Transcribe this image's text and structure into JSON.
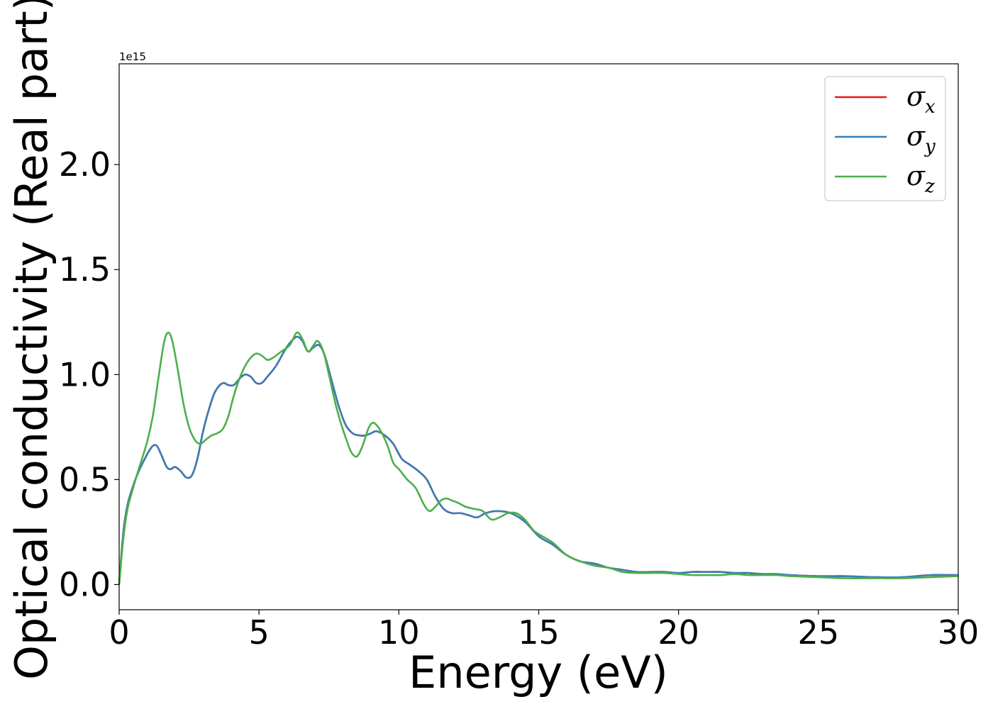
{
  "chart_data": {
    "type": "line",
    "xlabel": "Energy (eV)",
    "ylabel": "Optical conductivity (Real part)",
    "y_offset_label": "1e15",
    "y_multiplier": 1000000000000000.0,
    "xlim": [
      0,
      30
    ],
    "ylim": [
      -0.12,
      2.48
    ],
    "x_ticks": [
      0,
      5,
      10,
      15,
      20,
      25,
      30
    ],
    "x_tick_labels": [
      "0",
      "5",
      "10",
      "15",
      "20",
      "25",
      "30"
    ],
    "y_ticks": [
      0.0,
      0.5,
      1.0,
      1.5,
      2.0
    ],
    "y_tick_labels": [
      "0.0",
      "0.5",
      "1.0",
      "1.5",
      "2.0"
    ],
    "grid": false,
    "legend_position": "top-right",
    "series": [
      {
        "name": "σ_x",
        "legend_symbol": "σ",
        "legend_subscript": "x",
        "color": "#e41a1c",
        "x": [
          0,
          0.15,
          0.3,
          0.5,
          0.7,
          1.0,
          1.2,
          1.35,
          1.5,
          1.7,
          1.85,
          2.0,
          2.2,
          2.4,
          2.6,
          2.8,
          3.0,
          3.2,
          3.4,
          3.6,
          3.75,
          3.9,
          4.1,
          4.3,
          4.5,
          4.7,
          4.9,
          5.1,
          5.3,
          5.6,
          5.9,
          6.1,
          6.35,
          6.55,
          6.75,
          6.95,
          7.15,
          7.35,
          7.6,
          7.85,
          8.1,
          8.35,
          8.6,
          8.8,
          9.0,
          9.2,
          9.5,
          9.8,
          10.1,
          10.4,
          10.7,
          11.0,
          11.3,
          11.6,
          11.9,
          12.2,
          12.5,
          12.8,
          13.1,
          13.5,
          14.0,
          14.5,
          15.0,
          15.5,
          16.0,
          16.5,
          17.0,
          17.5,
          18.0,
          18.5,
          19.0,
          19.5,
          20.0,
          20.5,
          21.0,
          21.5,
          22.0,
          22.5,
          23.0,
          23.5,
          24.0,
          25.0,
          26.0,
          27.0,
          28.0,
          29.0,
          30.0
        ],
        "y": [
          0.0,
          0.25,
          0.38,
          0.47,
          0.54,
          0.62,
          0.66,
          0.66,
          0.62,
          0.56,
          0.55,
          0.56,
          0.54,
          0.51,
          0.52,
          0.6,
          0.73,
          0.83,
          0.91,
          0.95,
          0.96,
          0.95,
          0.95,
          0.98,
          1.0,
          0.99,
          0.96,
          0.96,
          0.99,
          1.04,
          1.11,
          1.15,
          1.18,
          1.16,
          1.11,
          1.13,
          1.14,
          1.09,
          0.97,
          0.85,
          0.76,
          0.72,
          0.71,
          0.71,
          0.72,
          0.73,
          0.71,
          0.67,
          0.6,
          0.57,
          0.54,
          0.5,
          0.42,
          0.36,
          0.34,
          0.34,
          0.33,
          0.32,
          0.34,
          0.35,
          0.34,
          0.3,
          0.23,
          0.19,
          0.14,
          0.11,
          0.1,
          0.08,
          0.07,
          0.06,
          0.06,
          0.06,
          0.055,
          0.06,
          0.06,
          0.06,
          0.055,
          0.055,
          0.05,
          0.05,
          0.045,
          0.04,
          0.04,
          0.035,
          0.035,
          0.045,
          0.045
        ]
      },
      {
        "name": "σ_y",
        "legend_symbol": "σ",
        "legend_subscript": "y",
        "color": "#377eb8",
        "x": [
          0,
          0.15,
          0.3,
          0.5,
          0.7,
          1.0,
          1.2,
          1.35,
          1.5,
          1.7,
          1.85,
          2.0,
          2.2,
          2.4,
          2.6,
          2.8,
          3.0,
          3.2,
          3.4,
          3.6,
          3.75,
          3.9,
          4.1,
          4.3,
          4.5,
          4.7,
          4.9,
          5.1,
          5.3,
          5.6,
          5.9,
          6.1,
          6.35,
          6.55,
          6.75,
          6.95,
          7.15,
          7.35,
          7.6,
          7.85,
          8.1,
          8.35,
          8.6,
          8.8,
          9.0,
          9.2,
          9.5,
          9.8,
          10.1,
          10.4,
          10.7,
          11.0,
          11.3,
          11.6,
          11.9,
          12.2,
          12.5,
          12.8,
          13.1,
          13.5,
          14.0,
          14.5,
          15.0,
          15.5,
          16.0,
          16.5,
          17.0,
          17.5,
          18.0,
          18.5,
          19.0,
          19.5,
          20.0,
          20.5,
          21.0,
          21.5,
          22.0,
          22.5,
          23.0,
          23.5,
          24.0,
          25.0,
          26.0,
          27.0,
          28.0,
          29.0,
          30.0
        ],
        "y": [
          0.0,
          0.25,
          0.38,
          0.47,
          0.54,
          0.62,
          0.66,
          0.66,
          0.62,
          0.56,
          0.55,
          0.56,
          0.54,
          0.51,
          0.52,
          0.6,
          0.73,
          0.83,
          0.91,
          0.95,
          0.96,
          0.95,
          0.95,
          0.98,
          1.0,
          0.99,
          0.96,
          0.96,
          0.99,
          1.04,
          1.11,
          1.15,
          1.18,
          1.16,
          1.11,
          1.13,
          1.14,
          1.09,
          0.97,
          0.85,
          0.76,
          0.72,
          0.71,
          0.71,
          0.72,
          0.73,
          0.71,
          0.67,
          0.6,
          0.57,
          0.54,
          0.5,
          0.42,
          0.36,
          0.34,
          0.34,
          0.33,
          0.32,
          0.34,
          0.35,
          0.34,
          0.3,
          0.23,
          0.19,
          0.14,
          0.11,
          0.1,
          0.08,
          0.07,
          0.06,
          0.06,
          0.06,
          0.055,
          0.06,
          0.06,
          0.06,
          0.055,
          0.055,
          0.05,
          0.05,
          0.045,
          0.04,
          0.04,
          0.035,
          0.035,
          0.045,
          0.045
        ]
      },
      {
        "name": "σ_z",
        "legend_symbol": "σ",
        "legend_subscript": "z",
        "color": "#4daf4a",
        "x": [
          0,
          0.15,
          0.3,
          0.5,
          0.7,
          1.0,
          1.2,
          1.4,
          1.6,
          1.75,
          1.9,
          2.1,
          2.3,
          2.5,
          2.7,
          2.9,
          3.1,
          3.3,
          3.5,
          3.7,
          3.9,
          4.1,
          4.3,
          4.5,
          4.7,
          4.9,
          5.1,
          5.3,
          5.5,
          5.8,
          6.1,
          6.35,
          6.55,
          6.75,
          6.95,
          7.1,
          7.3,
          7.5,
          7.7,
          7.9,
          8.1,
          8.3,
          8.5,
          8.7,
          8.9,
          9.05,
          9.2,
          9.4,
          9.6,
          9.8,
          10.0,
          10.3,
          10.6,
          10.9,
          11.1,
          11.3,
          11.5,
          11.7,
          11.9,
          12.1,
          12.4,
          12.7,
          13.0,
          13.3,
          13.6,
          13.9,
          14.2,
          14.5,
          14.8,
          15.0,
          15.5,
          16.0,
          16.5,
          17.0,
          17.5,
          18.0,
          18.5,
          19.0,
          19.5,
          20.0,
          20.5,
          21.0,
          21.5,
          22.0,
          22.5,
          23.0,
          23.5,
          24.0,
          25.0,
          26.0,
          27.0,
          28.0,
          29.0,
          30.0
        ],
        "y": [
          0.0,
          0.22,
          0.36,
          0.46,
          0.55,
          0.68,
          0.8,
          0.98,
          1.15,
          1.2,
          1.16,
          1.02,
          0.86,
          0.75,
          0.69,
          0.67,
          0.69,
          0.71,
          0.72,
          0.74,
          0.8,
          0.9,
          0.98,
          1.04,
          1.08,
          1.1,
          1.09,
          1.07,
          1.08,
          1.11,
          1.14,
          1.2,
          1.17,
          1.11,
          1.14,
          1.16,
          1.11,
          1.0,
          0.88,
          0.78,
          0.7,
          0.63,
          0.61,
          0.66,
          0.74,
          0.77,
          0.76,
          0.72,
          0.66,
          0.58,
          0.55,
          0.5,
          0.46,
          0.38,
          0.35,
          0.37,
          0.4,
          0.41,
          0.4,
          0.39,
          0.37,
          0.36,
          0.35,
          0.31,
          0.32,
          0.34,
          0.34,
          0.31,
          0.26,
          0.24,
          0.2,
          0.14,
          0.11,
          0.09,
          0.08,
          0.06,
          0.055,
          0.055,
          0.055,
          0.05,
          0.045,
          0.045,
          0.045,
          0.05,
          0.045,
          0.045,
          0.045,
          0.04,
          0.035,
          0.03,
          0.03,
          0.03,
          0.035,
          0.04
        ]
      }
    ]
  }
}
